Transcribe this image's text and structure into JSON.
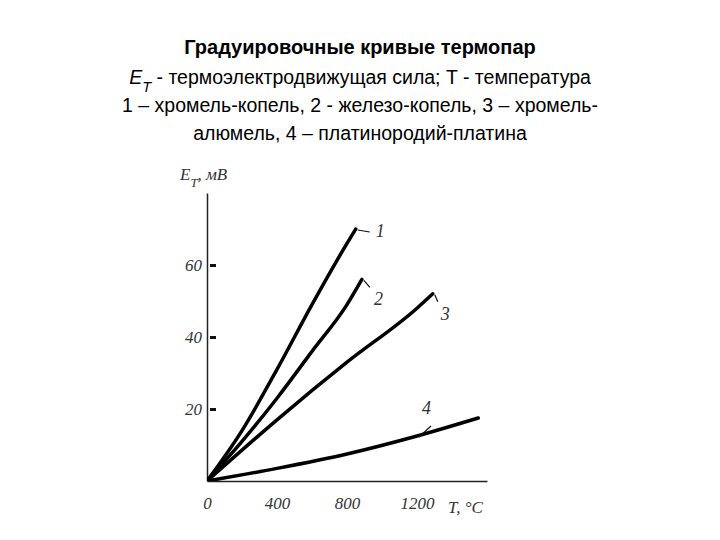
{
  "chart_data": {
    "type": "line",
    "title": "Градуировочные кривые термопар",
    "subtitle": [
      "ET - термоэлектродвижущая сила; T - температура",
      "1 – хромель-копель, 2 - железо-копель, 3 – хромель-",
      "алюмель, 4 – платинородий-платина"
    ],
    "xlabel": "T, °C",
    "ylabel": "ET, мВ",
    "xlim": [
      0,
      1600
    ],
    "ylim": [
      0,
      80
    ],
    "xticks": [
      0,
      400,
      800,
      1200
    ],
    "yticks": [
      20,
      40,
      60
    ],
    "grid": false,
    "series": [
      {
        "name": "1",
        "color": "#000000",
        "x": [
          0,
          200,
          400,
          600,
          800,
          850
        ],
        "values": [
          0,
          14,
          31,
          49,
          66,
          70
        ]
      },
      {
        "name": "2",
        "color": "#000000",
        "x": [
          0,
          200,
          400,
          600,
          800,
          885
        ],
        "values": [
          0,
          11,
          23,
          36,
          49,
          56
        ]
      },
      {
        "name": "3",
        "color": "#000000",
        "x": [
          0,
          400,
          800,
          1200,
          1290
        ],
        "values": [
          0,
          17,
          33,
          48,
          52
        ]
      },
      {
        "name": "4",
        "color": "#000000",
        "x": [
          0,
          400,
          800,
          1200,
          1550
        ],
        "values": [
          0,
          3.5,
          7.5,
          12.5,
          17.5
        ]
      }
    ]
  }
}
